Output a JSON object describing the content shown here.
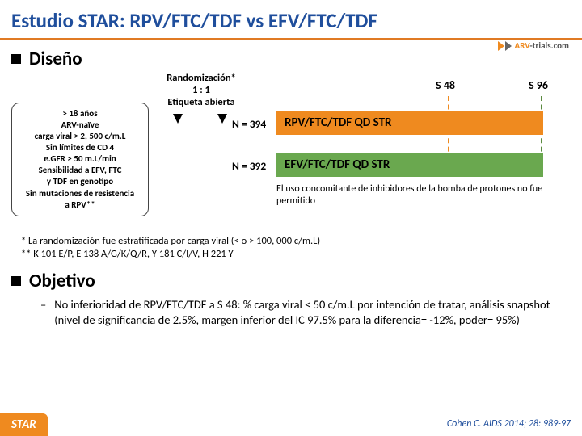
{
  "title": "Estudio STAR: RPV/FTC/TDF vs EFV/FTC/TDF",
  "logo": {
    "brand": "ARV",
    "suffix": "-trials.com"
  },
  "sections": {
    "design": "Diseño",
    "objective": "Objetivo"
  },
  "randomization": {
    "line1": "Randomización*",
    "line2": "1 : 1",
    "line3": "Etiqueta abierta"
  },
  "weeks": {
    "w48": "S 48",
    "w96": "S 96"
  },
  "criteria": [
    "> 18 años",
    "ARV-naïve",
    "carga viral > 2, 500 c/m.L",
    "Sin límites de CD 4",
    "e.GFR > 50 m.L/min",
    "Sensibilidad a EFV, FTC",
    "y TDF en genotipo",
    "Sin mutaciones de resistencia",
    "a RPV**"
  ],
  "arms": [
    {
      "n": "N = 394",
      "label": "RPV/FTC/TDF QD STR",
      "color": "#ef8a1f"
    },
    {
      "n": "N = 392",
      "label": "EFV/FTC/TDF QD STR",
      "color": "#6aa84f"
    }
  ],
  "note": "El uso concomitante de inhibidores de la bomba de protones no fue permitido",
  "footnotes": {
    "l1": "* La randomización fue estratificada por carga viral (< o > 100, 000 c/m.L)",
    "l2": "** K 101 E/P, E 138 A/G/K/Q/R, Y 181 C/I/V, H 221 Y"
  },
  "objective_text": "No inferioridad de RPV/FTC/TDF a S 48: % carga viral < 50 c/m.L por intención de tratar, análisis snapshot (nivel de significancia de 2.5%, margen inferior del IC 97.5% para la diferencia= -12%, poder= 95%)",
  "badge": "STAR",
  "citation": "Cohen C. AIDS 2014; 28: 989-97",
  "colors": {
    "title": "#1f4e9c",
    "underline": "#e07a24",
    "orange": "#ef8a1f",
    "green": "#6aa84f"
  }
}
